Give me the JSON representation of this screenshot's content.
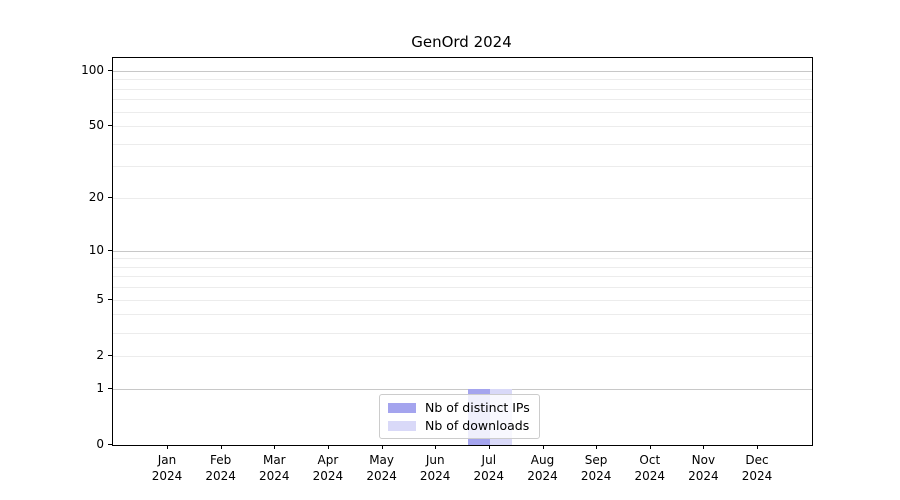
{
  "chart_data": {
    "type": "bar",
    "title": "GenOrd 2024",
    "categories": [
      "Jan",
      "Feb",
      "Mar",
      "Apr",
      "May",
      "Jun",
      "Jul",
      "Aug",
      "Sep",
      "Oct",
      "Nov",
      "Dec"
    ],
    "year_label": "2024",
    "series": [
      {
        "name": "Nb of distinct IPs",
        "color": "#a4a4ee",
        "values": [
          0,
          0,
          0,
          0,
          0,
          0,
          1,
          0,
          0,
          0,
          0,
          0
        ]
      },
      {
        "name": "Nb of downloads",
        "color": "#d9d9f8",
        "values": [
          0,
          0,
          0,
          0,
          0,
          0,
          1,
          0,
          0,
          0,
          0,
          0
        ]
      }
    ],
    "yscale": "log1p",
    "ylim": [
      0,
      117
    ],
    "yticks": [
      0,
      1,
      2,
      5,
      10,
      20,
      50,
      100
    ],
    "gridlines": [
      1,
      2,
      3,
      4,
      5,
      6,
      7,
      8,
      9,
      10,
      20,
      30,
      40,
      50,
      60,
      70,
      80,
      90,
      100
    ],
    "major_gridlines": [
      1,
      10,
      100
    ],
    "grid": "horizontal",
    "legend_position": "lower center",
    "colors": {
      "major_grid": "#c8c8c8",
      "minor_grid": "#ececec",
      "axis": "#000000",
      "background": "#ffffff"
    }
  }
}
